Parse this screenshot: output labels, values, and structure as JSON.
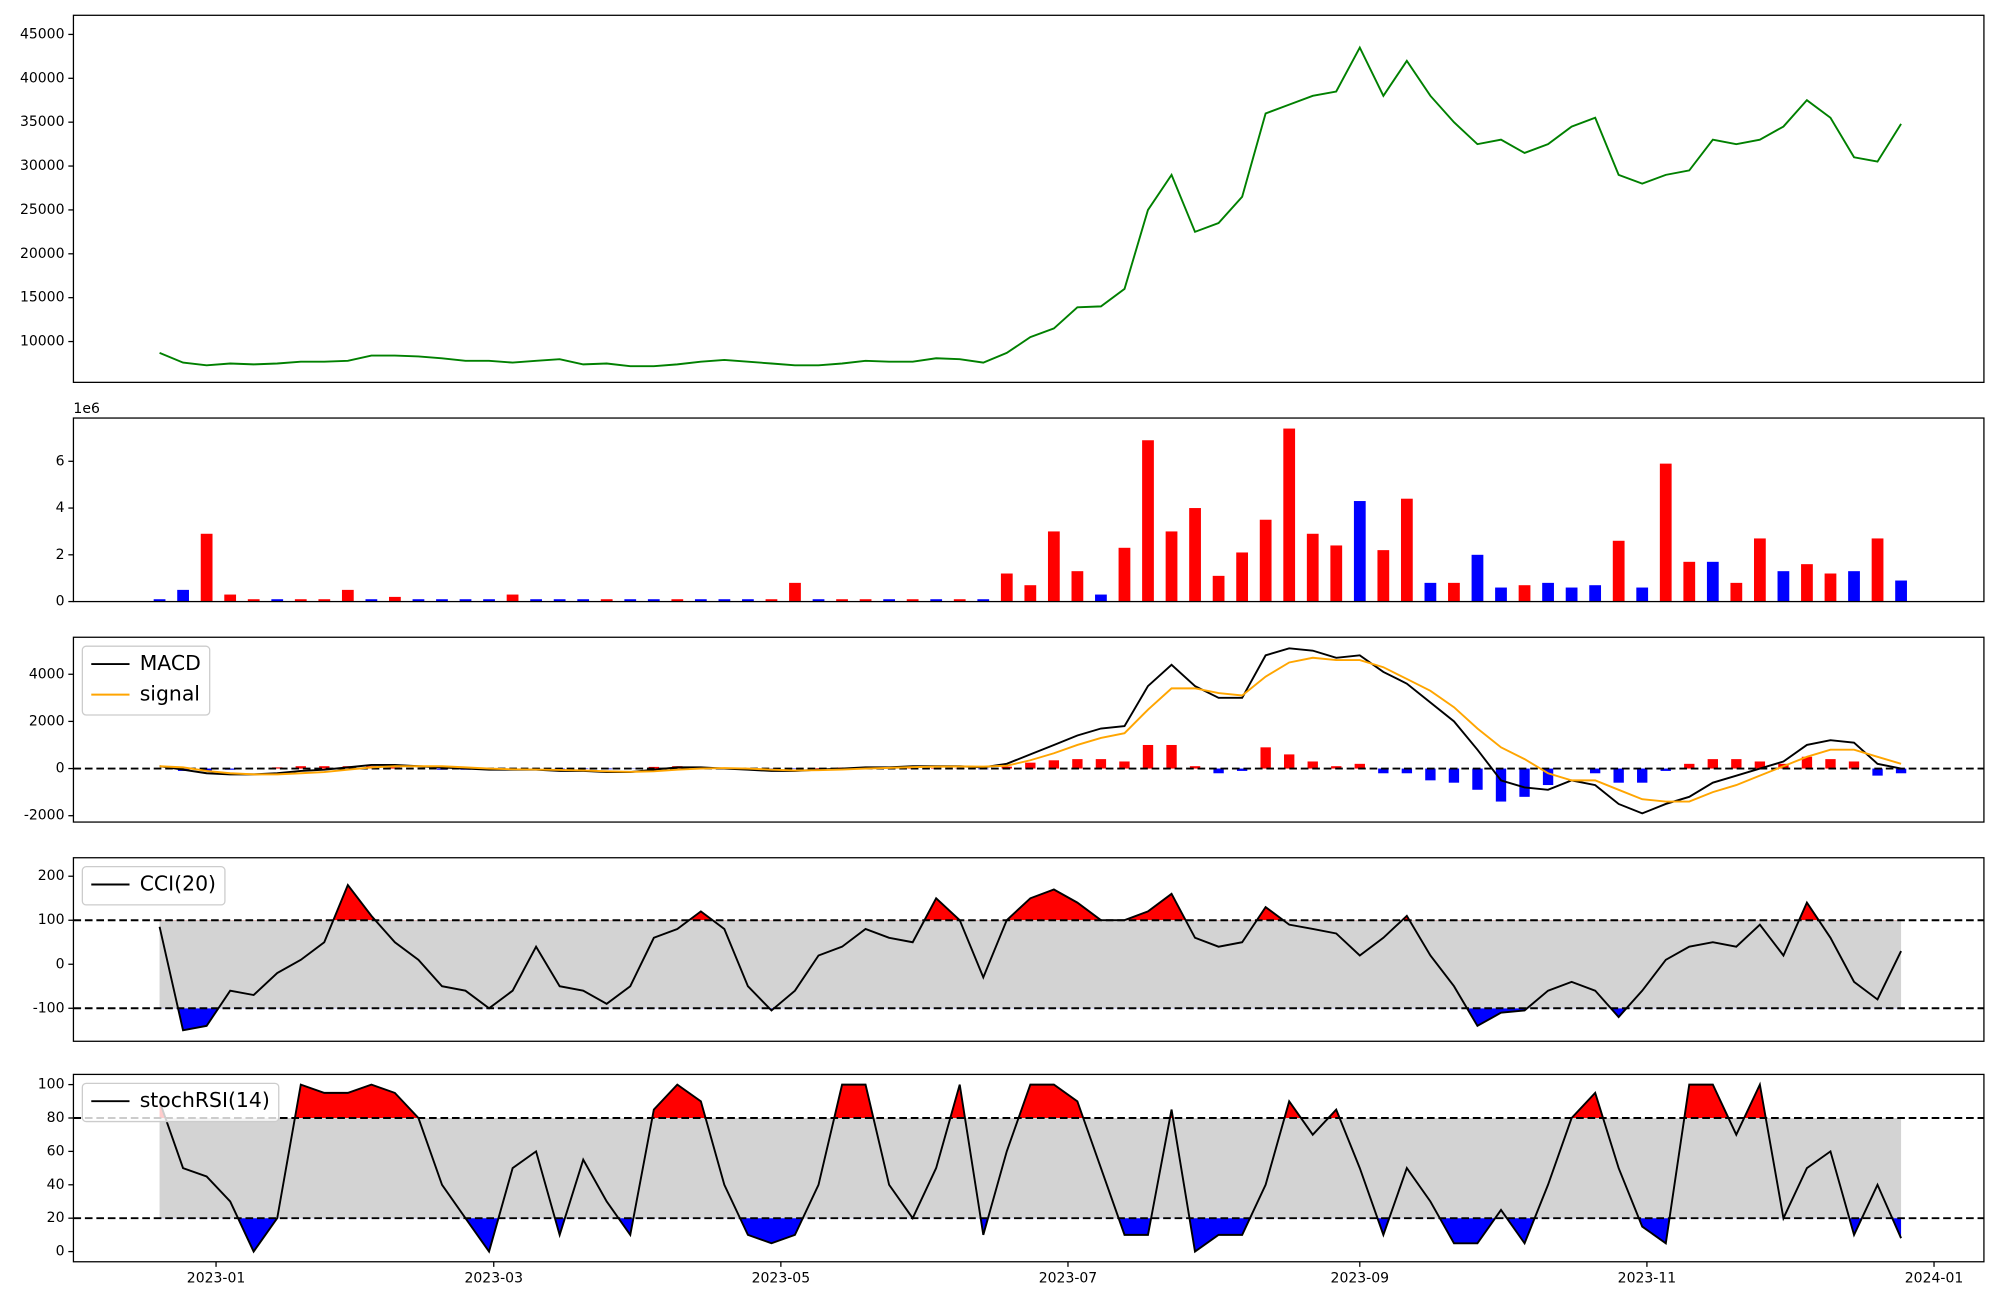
{
  "chart_data": [
    {
      "type": "line",
      "color": "green",
      "x": [
        19346,
        19351,
        19356,
        19361,
        19366,
        19371,
        19376,
        19381,
        19386,
        19391,
        19396,
        19401,
        19406,
        19411,
        19416,
        19421,
        19426,
        19431,
        19436,
        19441,
        19446,
        19451,
        19456,
        19461,
        19466,
        19471,
        19476,
        19481,
        19486,
        19491,
        19496,
        19501,
        19506,
        19511,
        19516,
        19521,
        19526,
        19531,
        19536,
        19541,
        19546,
        19551,
        19556,
        19561,
        19566,
        19571,
        19576,
        19581,
        19586,
        19591,
        19596,
        19601,
        19606,
        19611,
        19616,
        19621,
        19626,
        19631,
        19636,
        19641,
        19646,
        19651,
        19656,
        19661,
        19666,
        19671,
        19676,
        19681,
        19686,
        19691,
        19696,
        19701,
        19706,
        19711,
        19716
      ],
      "values": [
        8700,
        7600,
        7300,
        7500,
        7400,
        7500,
        7700,
        7700,
        7800,
        8400,
        8400,
        8300,
        8100,
        7800,
        7800,
        7600,
        7800,
        8000,
        7400,
        7500,
        7200,
        7200,
        7400,
        7700,
        7900,
        7700,
        7500,
        7300,
        7300,
        7500,
        7800,
        7700,
        7700,
        8100,
        8000,
        7600,
        8700,
        10500,
        11500,
        13900,
        14000,
        16000,
        25000,
        29000,
        22500,
        23500,
        26500,
        36000,
        37000,
        38000,
        38500,
        43500,
        38000,
        42000,
        38000,
        35000,
        32500,
        33000,
        31500,
        32500,
        34500,
        35500,
        29000,
        28000,
        29000,
        29500,
        33000,
        32500,
        33000,
        34500,
        37500,
        35500,
        31000,
        30500,
        34800
      ],
      "xlim": [
        19327.7,
        19733.6
      ],
      "ylim": [
        5350,
        47180
      ],
      "yticks": [
        10000,
        15000,
        20000,
        25000,
        30000,
        35000,
        40000,
        45000
      ]
    },
    {
      "type": "bar",
      "offset_label": "1e6",
      "x": [
        19346,
        19351,
        19356,
        19361,
        19366,
        19371,
        19376,
        19381,
        19386,
        19391,
        19396,
        19401,
        19406,
        19411,
        19416,
        19421,
        19426,
        19431,
        19436,
        19441,
        19446,
        19451,
        19456,
        19461,
        19466,
        19471,
        19476,
        19481,
        19486,
        19491,
        19496,
        19501,
        19506,
        19511,
        19516,
        19521,
        19526,
        19531,
        19536,
        19541,
        19546,
        19551,
        19556,
        19561,
        19566,
        19571,
        19576,
        19581,
        19586,
        19591,
        19596,
        19601,
        19606,
        19611,
        19616,
        19621,
        19626,
        19631,
        19636,
        19641,
        19646,
        19651,
        19656,
        19661,
        19666,
        19671,
        19676,
        19681,
        19686,
        19691,
        19696,
        19701,
        19706,
        19711,
        19716
      ],
      "values": [
        0.1,
        0.5,
        2.9,
        0.3,
        0.1,
        0.1,
        0.1,
        0.1,
        0.5,
        0.1,
        0.2,
        0.1,
        0.1,
        0.1,
        0.1,
        0.3,
        0.1,
        0.1,
        0.1,
        0.1,
        0.1,
        0.1,
        0.1,
        0.1,
        0.1,
        0.1,
        0.1,
        0.8,
        0.1,
        0.1,
        0.1,
        0.1,
        0.1,
        0.1,
        0.1,
        0.1,
        1.2,
        0.7,
        3.0,
        1.3,
        0.3,
        2.3,
        6.9,
        3.0,
        4.0,
        1.1,
        2.1,
        3.5,
        7.4,
        2.9,
        2.4,
        4.3,
        2.2,
        4.4,
        0.8,
        0.8,
        2.0,
        0.6,
        0.7,
        0.8,
        0.6,
        0.7,
        2.6,
        0.6,
        5.9,
        1.7,
        1.7,
        0.8,
        2.7,
        1.3,
        1.6,
        1.2,
        1.3,
        2.7,
        0.9
      ],
      "colors": [
        "blue",
        "blue",
        "red",
        "red",
        "red",
        "blue",
        "red",
        "red",
        "red",
        "blue",
        "red",
        "blue",
        "blue",
        "blue",
        "blue",
        "red",
        "blue",
        "blue",
        "blue",
        "red",
        "blue",
        "blue",
        "red",
        "blue",
        "blue",
        "blue",
        "red",
        "red",
        "blue",
        "red",
        "red",
        "blue",
        "red",
        "blue",
        "red",
        "blue",
        "red",
        "red",
        "red",
        "red",
        "blue",
        "red",
        "red",
        "red",
        "red",
        "red",
        "red",
        "red",
        "red",
        "red",
        "red",
        "blue",
        "red",
        "red",
        "blue",
        "red",
        "blue",
        "blue",
        "red",
        "blue",
        "blue",
        "blue",
        "red",
        "blue",
        "red",
        "red",
        "blue",
        "red",
        "red",
        "blue",
        "red",
        "red",
        "blue",
        "red",
        "blue"
      ],
      "xlim": [
        19327.7,
        19733.6
      ],
      "ylim": [
        0,
        7.85
      ],
      "yticks": [
        0,
        2,
        4,
        6
      ]
    },
    {
      "type": "line",
      "legend": "upper left",
      "thresholds": [
        0
      ],
      "x": [
        19346,
        19351,
        19356,
        19361,
        19366,
        19371,
        19376,
        19381,
        19386,
        19391,
        19396,
        19401,
        19406,
        19411,
        19416,
        19421,
        19426,
        19431,
        19436,
        19441,
        19446,
        19451,
        19456,
        19461,
        19466,
        19471,
        19476,
        19481,
        19486,
        19491,
        19496,
        19501,
        19506,
        19511,
        19516,
        19521,
        19526,
        19531,
        19536,
        19541,
        19546,
        19551,
        19556,
        19561,
        19566,
        19571,
        19576,
        19581,
        19586,
        19591,
        19596,
        19601,
        19606,
        19611,
        19616,
        19621,
        19626,
        19631,
        19636,
        19641,
        19646,
        19651,
        19656,
        19661,
        19666,
        19671,
        19676,
        19681,
        19686,
        19691,
        19696,
        19701,
        19706,
        19711,
        19716
      ],
      "series": [
        {
          "name": "MACD",
          "color": "black",
          "values": [
            100,
            -50,
            -200,
            -250,
            -250,
            -200,
            -100,
            -50,
            50,
            150,
            150,
            100,
            50,
            0,
            -50,
            -50,
            -50,
            -100,
            -100,
            -150,
            -150,
            -50,
            50,
            50,
            0,
            -50,
            -100,
            -100,
            -50,
            0,
            50,
            50,
            100,
            100,
            100,
            50,
            200,
            600,
            1000,
            1400,
            1700,
            1800,
            3500,
            4400,
            3500,
            3000,
            3000,
            4800,
            5100,
            5000,
            4700,
            4800,
            4100,
            3600,
            2800,
            2000,
            800,
            -500,
            -800,
            -900,
            -500,
            -700,
            -1500,
            -1900,
            -1500,
            -1200,
            -600,
            -300,
            0,
            300,
            1000,
            1200,
            1100,
            200,
            0
          ]
        },
        {
          "name": "signal",
          "color": "orange",
          "values": [
            100,
            50,
            -100,
            -200,
            -250,
            -250,
            -200,
            -150,
            -50,
            50,
            100,
            100,
            100,
            50,
            0,
            -30,
            -40,
            -60,
            -80,
            -120,
            -140,
            -120,
            -50,
            0,
            20,
            0,
            -50,
            -80,
            -70,
            -40,
            0,
            30,
            60,
            80,
            90,
            80,
            120,
            350,
            650,
            1000,
            1300,
            1500,
            2500,
            3400,
            3400,
            3200,
            3100,
            3900,
            4500,
            4700,
            4600,
            4600,
            4300,
            3800,
            3300,
            2600,
            1700,
            900,
            400,
            -200,
            -500,
            -500,
            -900,
            -1300,
            -1400,
            -1400,
            -1000,
            -700,
            -300,
            100,
            500,
            800,
            800,
            500,
            200
          ]
        }
      ],
      "histogram": {
        "pos_color": "red",
        "neg_color": "blue",
        "values": [
          0,
          -100,
          -100,
          -50,
          0,
          50,
          100,
          100,
          100,
          100,
          50,
          0,
          -50,
          -50,
          -50,
          -20,
          -10,
          -40,
          -20,
          -30,
          -10,
          70,
          100,
          50,
          -20,
          -50,
          -50,
          -20,
          20,
          40,
          50,
          20,
          40,
          20,
          10,
          -30,
          80,
          250,
          350,
          400,
          400,
          300,
          1000,
          1000,
          100,
          -200,
          -100,
          900,
          600,
          300,
          100,
          200,
          -200,
          -200,
          -500,
          -600,
          -900,
          -1400,
          -1200,
          -700,
          0,
          -200,
          -600,
          -600,
          -100,
          200,
          400,
          400,
          300,
          200,
          500,
          400,
          300,
          -300,
          -200
        ]
      },
      "xlim": [
        19327.7,
        19733.6
      ],
      "ylim": [
        -2270,
        5570
      ],
      "yticks": [
        -2000,
        0,
        2000,
        4000
      ]
    },
    {
      "type": "line",
      "legend": "upper left",
      "thresholds": [
        -100,
        100
      ],
      "band_color": "lightgray",
      "above_color": "red",
      "below_color": "blue",
      "x": [
        19346,
        19351,
        19356,
        19361,
        19366,
        19371,
        19376,
        19381,
        19386,
        19391,
        19396,
        19401,
        19406,
        19411,
        19416,
        19421,
        19426,
        19431,
        19436,
        19441,
        19446,
        19451,
        19456,
        19461,
        19466,
        19471,
        19476,
        19481,
        19486,
        19491,
        19496,
        19501,
        19506,
        19511,
        19516,
        19521,
        19526,
        19531,
        19536,
        19541,
        19546,
        19551,
        19556,
        19561,
        19566,
        19571,
        19576,
        19581,
        19586,
        19591,
        19596,
        19601,
        19606,
        19611,
        19616,
        19621,
        19626,
        19631,
        19636,
        19641,
        19646,
        19651,
        19656,
        19661,
        19666,
        19671,
        19676,
        19681,
        19686,
        19691,
        19696,
        19701,
        19706,
        19711,
        19716
      ],
      "series": [
        {
          "name": "CCI(20)",
          "color": "black",
          "values": [
            85,
            -150,
            -140,
            -60,
            -70,
            -20,
            10,
            50,
            180,
            110,
            50,
            10,
            -50,
            -60,
            -100,
            -60,
            40,
            -50,
            -60,
            -90,
            -50,
            60,
            80,
            120,
            80,
            -50,
            -105,
            -60,
            20,
            40,
            80,
            60,
            50,
            150,
            100,
            -30,
            100,
            150,
            170,
            140,
            100,
            100,
            120,
            160,
            60,
            40,
            50,
            130,
            90,
            80,
            70,
            20,
            60,
            110,
            20,
            -50,
            -140,
            -110,
            -105,
            -60,
            -40,
            -60,
            -120,
            -60,
            10,
            40,
            50,
            40,
            90,
            20,
            140,
            60,
            -40,
            -80,
            30
          ]
        }
      ],
      "xlim": [
        19327.7,
        19733.6
      ],
      "ylim": [
        -175,
        242
      ],
      "yticks": [
        -100,
        0,
        100,
        200
      ]
    },
    {
      "type": "line",
      "legend": "upper left",
      "thresholds": [
        20,
        80
      ],
      "band_color": "lightgray",
      "above_color": "red",
      "below_color": "blue",
      "x": [
        19346,
        19351,
        19356,
        19361,
        19366,
        19371,
        19376,
        19381,
        19386,
        19391,
        19396,
        19401,
        19406,
        19411,
        19416,
        19421,
        19426,
        19431,
        19436,
        19441,
        19446,
        19451,
        19456,
        19461,
        19466,
        19471,
        19476,
        19481,
        19486,
        19491,
        19496,
        19501,
        19506,
        19511,
        19516,
        19521,
        19526,
        19531,
        19536,
        19541,
        19546,
        19551,
        19556,
        19561,
        19566,
        19571,
        19576,
        19581,
        19586,
        19591,
        19596,
        19601,
        19606,
        19611,
        19616,
        19621,
        19626,
        19631,
        19636,
        19641,
        19646,
        19651,
        19656,
        19661,
        19666,
        19671,
        19676,
        19681,
        19686,
        19691,
        19696,
        19701,
        19706,
        19711,
        19716
      ],
      "series": [
        {
          "name": "stochRSI(14)",
          "color": "black",
          "values": [
            90,
            50,
            45,
            30,
            0,
            20,
            100,
            95,
            95,
            100,
            95,
            80,
            40,
            20,
            0,
            50,
            60,
            10,
            55,
            30,
            10,
            85,
            100,
            90,
            40,
            10,
            5,
            10,
            40,
            100,
            100,
            40,
            20,
            50,
            100,
            10,
            60,
            100,
            100,
            90,
            50,
            10,
            10,
            85,
            0,
            10,
            10,
            40,
            90,
            70,
            85,
            50,
            10,
            50,
            30,
            5,
            5,
            25,
            5,
            40,
            80,
            95,
            50,
            15,
            5,
            100,
            100,
            70,
            100,
            20,
            50,
            60,
            10,
            40,
            8
          ]
        }
      ],
      "xlim": [
        19327.7,
        19733.6
      ],
      "ylim": [
        -6.1,
        106.1
      ],
      "yticks": [
        0,
        20,
        40,
        60,
        80,
        100
      ],
      "xticks": [
        {
          "value": 19358,
          "label": "2023-01"
        },
        {
          "value": 19417,
          "label": "2023-03"
        },
        {
          "value": 19478,
          "label": "2023-05"
        },
        {
          "value": 19539,
          "label": "2023-07"
        },
        {
          "value": 19601,
          "label": "2023-09"
        },
        {
          "value": 19662,
          "label": "2023-11"
        },
        {
          "value": 19723,
          "label": "2024-01"
        }
      ]
    }
  ]
}
